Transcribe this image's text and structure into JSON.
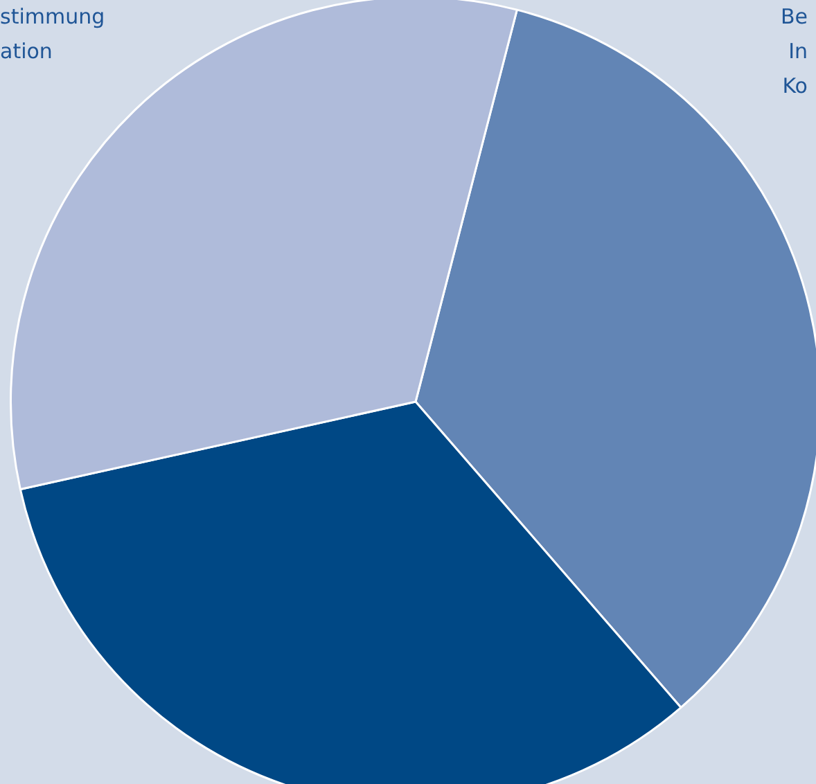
{
  "chart_data": {
    "type": "pie",
    "categories": [
      null,
      null,
      null
    ],
    "values": [
      34.6,
      32.9,
      32.5
    ],
    "colors": [
      "#6285b5",
      "#004885",
      "#afbbda"
    ],
    "annotations": [
      "stimmung",
      "ation",
      "Be",
      "In",
      "Ko"
    ],
    "legend": false
  }
}
